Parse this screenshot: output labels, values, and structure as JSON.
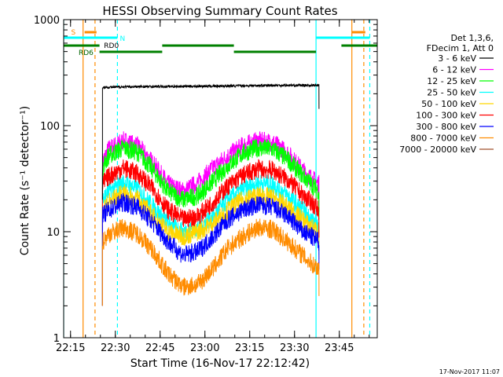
{
  "chart_data": {
    "type": "line",
    "title": "HESSI Observing Summary Count Rates",
    "xlabel": "Start Time (16-Nov-17 22:12:42)",
    "ylabel": "Count Rate (s⁻¹ detector⁻¹)",
    "yscale": "log",
    "ylim": [
      1,
      1000
    ],
    "xlim_minutes": [
      0,
      105
    ],
    "x_ticks": [
      "22:15",
      "22:30",
      "22:45",
      "23:00",
      "23:15",
      "23:30",
      "23:45"
    ],
    "x_tick_minutes": [
      2.3,
      17.3,
      32.3,
      47.3,
      62.3,
      77.3,
      92.3
    ],
    "y_ticks": [
      "1",
      "10",
      "100",
      "1000"
    ],
    "grid": false,
    "legend_header": [
      "Det 1,3,6,",
      "FDecim 1, Att 0"
    ],
    "legend_position": "right",
    "series": [
      {
        "name": "3 - 6 keV",
        "color": "#000000",
        "x": [
          13,
          20,
          30,
          40,
          50,
          60,
          70,
          80,
          85.5
        ],
        "y": [
          230,
          232,
          234,
          235,
          236,
          238,
          240,
          240,
          240
        ]
      },
      {
        "name": "6 - 12 keV",
        "color": "#ff00ff",
        "x": [
          13,
          15,
          20,
          25,
          30,
          35,
          40,
          45,
          50,
          55,
          60,
          65,
          70,
          75,
          80,
          83,
          85.5
        ],
        "y": [
          45,
          60,
          72,
          64,
          44,
          28,
          24,
          29,
          40,
          52,
          65,
          72,
          70,
          55,
          38,
          32,
          28
        ]
      },
      {
        "name": "12 - 25 keV",
        "color": "#00ff00",
        "x": [
          13,
          15,
          20,
          25,
          30,
          35,
          40,
          45,
          50,
          55,
          60,
          65,
          70,
          75,
          80,
          83,
          85.5
        ],
        "y": [
          40,
          52,
          62,
          56,
          38,
          24,
          20,
          22,
          30,
          42,
          55,
          62,
          60,
          48,
          34,
          28,
          24
        ]
      },
      {
        "name": "25 - 50 keV",
        "color": "#00ffff",
        "x": [
          13,
          15,
          20,
          25,
          30,
          35,
          40,
          45,
          50,
          55,
          60,
          65,
          70,
          75,
          80,
          83,
          85.5
        ],
        "y": [
          20,
          24,
          29,
          25,
          17,
          12,
          10,
          11,
          14,
          20,
          25,
          29,
          28,
          22,
          16,
          13,
          11
        ]
      },
      {
        "name": "50 - 100 keV",
        "color": "#ffd700",
        "x": [
          13,
          15,
          20,
          25,
          30,
          35,
          40,
          45,
          50,
          55,
          60,
          65,
          70,
          75,
          80,
          83,
          85.5
        ],
        "y": [
          16,
          19,
          23,
          20,
          14,
          10,
          9,
          10,
          12,
          16,
          20,
          22,
          21,
          17,
          13,
          11,
          10
        ]
      },
      {
        "name": "100 - 300 keV",
        "color": "#ff0000",
        "x": [
          13,
          15,
          20,
          25,
          30,
          35,
          40,
          45,
          50,
          55,
          60,
          65,
          70,
          75,
          80,
          83,
          85.5
        ],
        "y": [
          28,
          33,
          40,
          35,
          25,
          16,
          13,
          14,
          19,
          27,
          34,
          39,
          38,
          31,
          22,
          19,
          16
        ]
      },
      {
        "name": "300 - 800 keV",
        "color": "#0000ff",
        "x": [
          13,
          15,
          20,
          25,
          30,
          35,
          40,
          45,
          50,
          55,
          60,
          65,
          70,
          75,
          80,
          83,
          85.5
        ],
        "y": [
          14,
          16,
          19,
          17,
          12,
          8,
          6,
          6.5,
          9,
          13,
          16,
          18,
          17,
          14,
          10,
          9,
          8
        ]
      },
      {
        "name": "800 - 7000 keV",
        "color": "#ff8c00",
        "x": [
          13,
          15,
          20,
          25,
          30,
          35,
          40,
          45,
          50,
          55,
          60,
          65,
          70,
          75,
          80,
          83,
          85.5
        ],
        "y": [
          8,
          9.5,
          11,
          9.5,
          6.5,
          4,
          3,
          3.2,
          4.5,
          7,
          9,
          11,
          10.5,
          8,
          6,
          5,
          4.5
        ]
      },
      {
        "name": "7000 - 20000 keV",
        "color": "#a0522d",
        "x": [],
        "y": []
      }
    ],
    "annotations": [
      {
        "text": "S",
        "color": "#ff8c00"
      },
      {
        "text": "N",
        "color": "#00ffff"
      },
      {
        "text": "RD0",
        "color": "#000000"
      },
      {
        "text": "RD6",
        "color": "#006400"
      }
    ],
    "vertical_lines_minutes": [
      {
        "x": 0,
        "color": "#00ffff",
        "style": "solid"
      },
      {
        "x": 6.5,
        "color": "#ff8c00",
        "style": "solid"
      },
      {
        "x": 10.5,
        "color": "#ff8c00",
        "style": "dashed"
      },
      {
        "x": 18,
        "color": "#00ffff",
        "style": "dashed"
      },
      {
        "x": 84.5,
        "color": "#00ffff",
        "style": "solid"
      },
      {
        "x": 96.5,
        "color": "#ff8c00",
        "style": "solid"
      },
      {
        "x": 100.5,
        "color": "#ff8c00",
        "style": "dashed"
      },
      {
        "x": 102.5,
        "color": "#00ffff",
        "style": "dashed"
      }
    ],
    "flag_bars": [
      {
        "name": "S",
        "color": "#ff8c00",
        "row": 0,
        "segments": [
          [
            7,
            11
          ],
          [
            96.5,
            101
          ]
        ]
      },
      {
        "name": "N",
        "color": "#00ffff",
        "row": 1,
        "segments": [
          [
            0,
            18
          ],
          [
            84.5,
            102.5
          ]
        ]
      },
      {
        "name": "RD0",
        "color": "#008000",
        "row": 2,
        "segments": [
          [
            0,
            12
          ],
          [
            33,
            57
          ],
          [
            93,
            105
          ]
        ]
      },
      {
        "name": "RD6",
        "color": "#008000",
        "row": 3,
        "segments": [
          [
            12,
            33
          ],
          [
            57,
            84.5
          ]
        ]
      }
    ]
  },
  "footer": {
    "timestamp": "17-Nov-2017 11:07"
  }
}
